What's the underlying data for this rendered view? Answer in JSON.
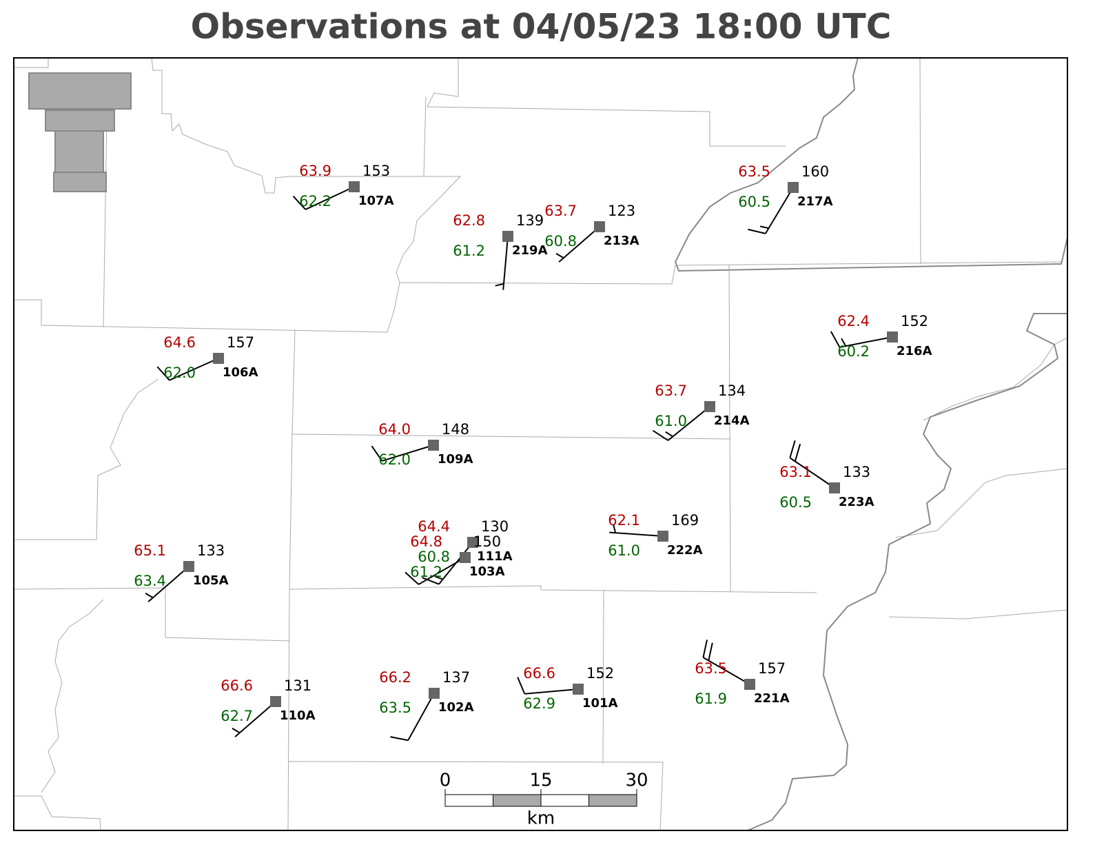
{
  "title": "Observations at 04/05/23 18:00 UTC",
  "stations": [
    {
      "id": "107A",
      "temp": "63.9",
      "dewpoint": "62.2",
      "pressure": "153",
      "wind_dir": 245,
      "wind_kt": 10
    },
    {
      "id": "219A",
      "temp": "62.8",
      "dewpoint": "61.2",
      "pressure": "139",
      "wind_dir": 185,
      "wind_kt": 5
    },
    {
      "id": "213A",
      "temp": "63.7",
      "dewpoint": "60.8",
      "pressure": "123",
      "wind_dir": 229,
      "wind_kt": 5
    },
    {
      "id": "217A",
      "temp": "63.5",
      "dewpoint": "60.5",
      "pressure": "160",
      "wind_dir": 211,
      "wind_kt": 15
    },
    {
      "id": "106A",
      "temp": "64.6",
      "dewpoint": "62.0",
      "pressure": "157",
      "wind_dir": 246,
      "wind_kt": 10
    },
    {
      "id": "216A",
      "temp": "62.4",
      "dewpoint": "60.2",
      "pressure": "152",
      "wind_dir": 259,
      "wind_kt": 15
    },
    {
      "id": "214A",
      "temp": "63.7",
      "dewpoint": "61.0",
      "pressure": "134",
      "wind_dir": 231,
      "wind_kt": 15
    },
    {
      "id": "109A",
      "temp": "64.0",
      "dewpoint": "62.0",
      "pressure": "148",
      "wind_dir": 253,
      "wind_kt": 10
    },
    {
      "id": "223A",
      "temp": "63.1",
      "dewpoint": "60.5",
      "pressure": "133",
      "wind_dir": 304,
      "wind_kt": 20
    },
    {
      "id": "111A",
      "temp": "64.4",
      "dewpoint": "60.8",
      "pressure": "130",
      "wind_dir": 219,
      "wind_kt": 15
    },
    {
      "id": "103A",
      "temp": "64.8",
      "dewpoint": "61.2",
      "pressure": "150",
      "wind_dir": 240,
      "wind_kt": 10
    },
    {
      "id": "222A",
      "temp": "62.1",
      "dewpoint": "61.0",
      "pressure": "169",
      "wind_dir": 274,
      "wind_kt": 5
    },
    {
      "id": "105A",
      "temp": "65.1",
      "dewpoint": "63.4",
      "pressure": "133",
      "wind_dir": 229,
      "wind_kt": 5
    },
    {
      "id": "110A",
      "temp": "66.6",
      "dewpoint": "62.7",
      "pressure": "131",
      "wind_dir": 229,
      "wind_kt": 5
    },
    {
      "id": "102A",
      "temp": "66.2",
      "dewpoint": "63.5",
      "pressure": "137",
      "wind_dir": 209,
      "wind_kt": 10
    },
    {
      "id": "101A",
      "temp": "66.6",
      "dewpoint": "62.9",
      "pressure": "152",
      "wind_dir": 265,
      "wind_kt": 10
    },
    {
      "id": "221A",
      "temp": "63.5",
      "dewpoint": "61.9",
      "pressure": "157",
      "wind_dir": 300,
      "wind_kt": 20
    }
  ],
  "scale_bar": {
    "ticks": [
      0,
      15,
      30
    ],
    "unit": "km"
  }
}
